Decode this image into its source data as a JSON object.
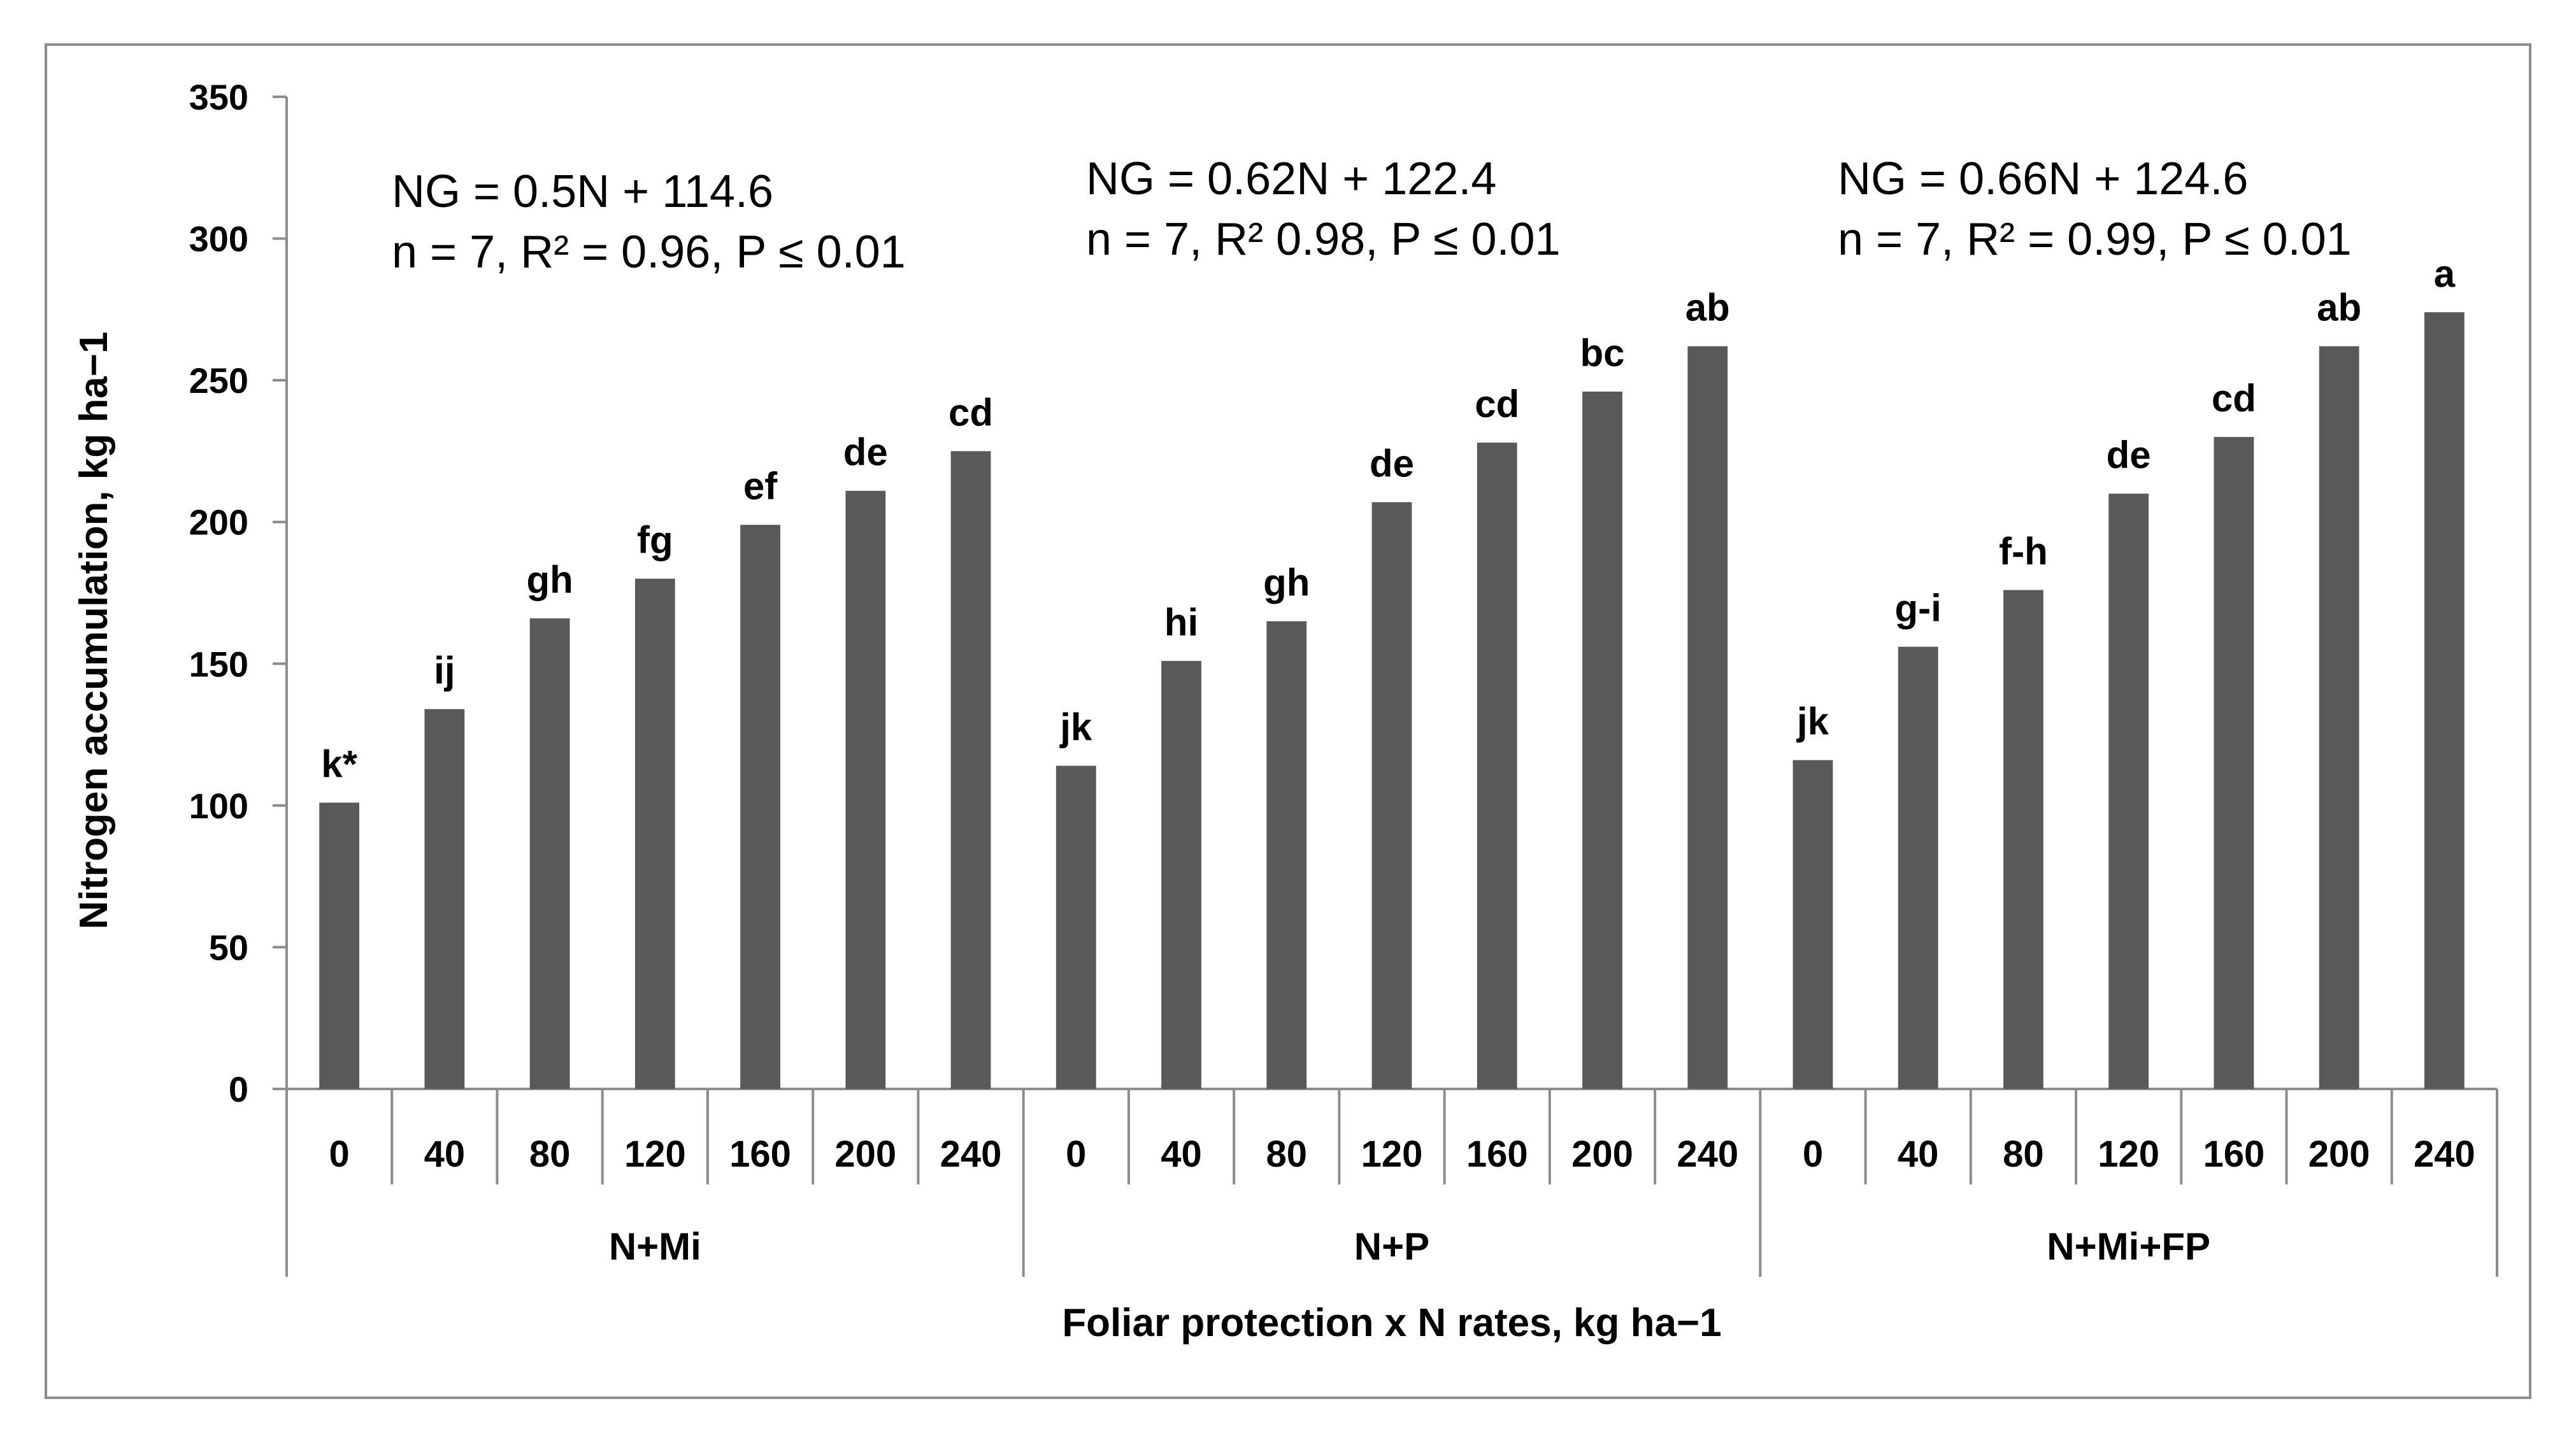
{
  "chart_data": {
    "type": "bar",
    "title": "",
    "xlabel": "Foliar protection x N rates, kg ha−1",
    "ylabel": "Nitrogen accumulation, kg ha−1",
    "ylim": [
      0,
      350
    ],
    "yticks": [
      "0",
      "50",
      "100",
      "150",
      "200",
      "250",
      "300",
      "350"
    ],
    "grid": false,
    "bar_color": "#595959",
    "groups": [
      {
        "name": "N+Mi",
        "equation": "NG = 0.5N + 114.6",
        "stats": "n = 7, R² = 0.96, P ≤ 0.01",
        "categories": [
          "0",
          "40",
          "80",
          "120",
          "160",
          "200",
          "240"
        ],
        "values": [
          101,
          134,
          166,
          180,
          199,
          211,
          225
        ],
        "letters": [
          "k*",
          "ij",
          "gh",
          "fg",
          "ef",
          "de",
          "cd"
        ]
      },
      {
        "name": "N+P",
        "equation": "NG = 0.62N + 122.4",
        "stats": "n = 7, R² 0.98, P ≤ 0.01",
        "categories": [
          "0",
          "40",
          "80",
          "120",
          "160",
          "200",
          "240"
        ],
        "values": [
          114,
          151,
          165,
          207,
          228,
          246,
          262
        ],
        "letters": [
          "jk",
          "hi",
          "gh",
          "de",
          "cd",
          "bc",
          "ab"
        ]
      },
      {
        "name": "N+Mi+FP",
        "equation": "NG = 0.66N + 124.6",
        "stats": "n = 7, R² = 0.99, P ≤ 0.01",
        "categories": [
          "0",
          "40",
          "80",
          "120",
          "160",
          "200",
          "240"
        ],
        "values": [
          116,
          156,
          176,
          210,
          230,
          262,
          274
        ],
        "letters": [
          "jk",
          "g-i",
          "f-h",
          "de",
          "cd",
          "ab",
          "a"
        ]
      }
    ]
  }
}
